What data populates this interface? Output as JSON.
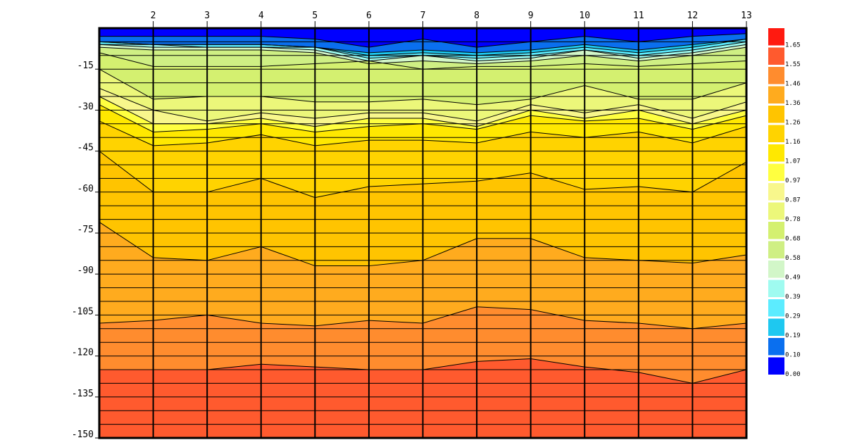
{
  "chart_data": {
    "type": "heatmap",
    "title": "",
    "xlabel": "",
    "ylabel": "",
    "x_ticks": [
      "2",
      "3",
      "4",
      "5",
      "6",
      "7",
      "8",
      "9",
      "10",
      "11",
      "12",
      "13"
    ],
    "y_ticks": [
      "-15",
      "-30",
      "-45",
      "-60",
      "-75",
      "-90",
      "-105",
      "-120",
      "-135",
      "-150"
    ],
    "xlim": [
      1,
      13
    ],
    "ylim": [
      -150,
      0
    ],
    "grid": true,
    "legend_position": "right",
    "colorbar": {
      "levels": [
        0.0,
        0.1,
        0.19,
        0.29,
        0.39,
        0.49,
        0.58,
        0.68,
        0.78,
        0.87,
        0.97,
        1.07,
        1.16,
        1.26,
        1.36,
        1.46,
        1.55,
        1.65
      ],
      "labels": [
        "0.00",
        "0.10",
        "0.19",
        "0.29",
        "0.39",
        "0.49",
        "0.58",
        "0.68",
        "0.78",
        "0.87",
        "0.97",
        "1.07",
        "1.16",
        "1.26",
        "1.36",
        "1.46",
        "1.55",
        "1.65"
      ],
      "colors": [
        "#0000ff",
        "#0a6fef",
        "#1ec8f0",
        "#5cecff",
        "#9ffbf0",
        "#d2f6c8",
        "#cfef84",
        "#d4f070",
        "#ecf77a",
        "#f8f78c",
        "#ffff40",
        "#ffe800",
        "#ffd300",
        "#ffc400",
        "#ffab1e",
        "#ff8c2e",
        "#ff5a2e",
        "#ff1a10"
      ]
    },
    "contours": [
      {
        "level": 0.1,
        "depths": [
          -3,
          -3,
          -3,
          -3,
          -4,
          -7,
          -4,
          -7,
          -5,
          -3,
          -5,
          -3,
          -2
        ]
      },
      {
        "level": 0.19,
        "depths": [
          -5,
          -6,
          -6,
          -6,
          -7,
          -9,
          -8,
          -9,
          -8,
          -6,
          -8,
          -6,
          -4
        ]
      },
      {
        "level": 0.29,
        "depths": [
          -5,
          -6,
          -6,
          -6,
          -7,
          -10,
          -9,
          -10,
          -9,
          -7,
          -9,
          -7,
          -4
        ]
      },
      {
        "level": 0.39,
        "depths": [
          -6,
          -6,
          -7,
          -7,
          -7,
          -11,
          -10,
          -11,
          -10,
          -8,
          -10,
          -8,
          -5
        ]
      },
      {
        "level": 0.49,
        "depths": [
          -6,
          -7,
          -7,
          -7,
          -8,
          -12,
          -10,
          -12,
          -11,
          -8,
          -11,
          -9,
          -6
        ]
      },
      {
        "level": 0.58,
        "depths": [
          -7,
          -8,
          -8,
          -8,
          -9,
          -13,
          -12,
          -13,
          -12,
          -10,
          -12,
          -10,
          -7
        ]
      },
      {
        "level": 0.68,
        "depths": [
          -9,
          -14,
          -14,
          -14,
          -13,
          -12,
          -15,
          -14,
          -14,
          -13,
          -14,
          -13,
          -12
        ]
      },
      {
        "level": 0.78,
        "depths": [
          -15,
          -26,
          -25,
          -25,
          -27,
          -27,
          -26,
          -28,
          -26,
          -21,
          -26,
          -26,
          -20
        ]
      },
      {
        "level": 0.87,
        "depths": [
          -22,
          -30,
          -34,
          -31,
          -33,
          -31,
          -31,
          -34,
          -28,
          -31,
          -28,
          -33,
          -27
        ]
      },
      {
        "level": 0.97,
        "depths": [
          -25,
          -35,
          -35,
          -33,
          -36,
          -33,
          -33,
          -36,
          -30,
          -33,
          -30,
          -35,
          -30
        ]
      },
      {
        "level": 1.07,
        "depths": [
          -28,
          -38,
          -37,
          -35,
          -38,
          -36,
          -35,
          -37,
          -32,
          -34,
          -33,
          -37,
          -32
        ]
      },
      {
        "level": 1.16,
        "depths": [
          -34,
          -43,
          -42,
          -39,
          -43,
          -41,
          -41,
          -42,
          -38,
          -40,
          -38,
          -42,
          -36
        ]
      },
      {
        "level": 1.26,
        "depths": [
          -45,
          -60,
          -60,
          -55,
          -62,
          -58,
          -57,
          -56,
          -53,
          -59,
          -58,
          -60,
          -49
        ]
      },
      {
        "level": 1.36,
        "depths": [
          -71,
          -84,
          -85,
          -80,
          -87,
          -87,
          -85,
          -77,
          -77,
          -84,
          -85,
          -86,
          -83
        ]
      },
      {
        "level": 1.46,
        "depths": [
          -108,
          -107,
          -105,
          -108,
          -109,
          -107,
          -108,
          -102,
          -103,
          -107,
          -108,
          -110,
          -108
        ]
      },
      {
        "level": 1.55,
        "depths": [
          -125,
          -125,
          -125,
          -123,
          -124,
          -125,
          -125,
          -122,
          -121,
          -124,
          -126,
          -130,
          -125
        ]
      }
    ]
  }
}
